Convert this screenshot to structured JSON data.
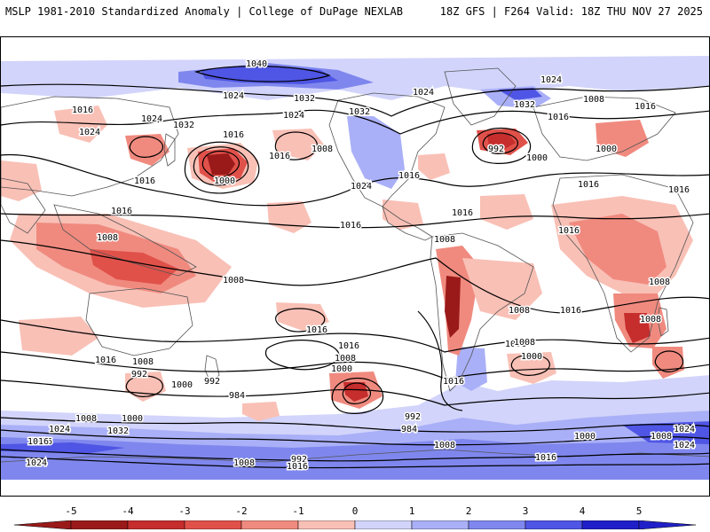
{
  "header": {
    "left_title": "MSLP 1981-2010 Standardized Anomaly | College of DuPage NEXLAB",
    "right_title": "18Z GFS | F264 Valid: 18Z THU NOV 27 2025"
  },
  "colors": {
    "neg5": "#9a1a1a",
    "neg4": "#c62d2d",
    "neg3": "#e0514a",
    "neg2": "#f08a7f",
    "neg1": "#f9c0b6",
    "neutral": "#ffffff",
    "pos1": "#d2d4fb",
    "pos2": "#aab0f7",
    "pos3": "#7f87ee",
    "pos4": "#4f55e4",
    "pos5": "#2020c8",
    "isobar": "#000000",
    "coastline": "#555555"
  },
  "colorbar": {
    "ticks": [
      "-5",
      "-4",
      "-3",
      "-2",
      "-1",
      "0",
      "1",
      "2",
      "3",
      "4",
      "5"
    ]
  },
  "isobar_labels": [
    "1040",
    "1024",
    "1032",
    "1024",
    "1032",
    "1024",
    "1024",
    "1032",
    "1016",
    "1008",
    "1016",
    "1016",
    "1024",
    "1024",
    "1032",
    "1016",
    "1008",
    "1016",
    "1016",
    "992",
    "1000",
    "1008",
    "1016",
    "1000",
    "1000",
    "1016",
    "1008",
    "1016",
    "1016",
    "1024",
    "1016",
    "1016",
    "1008",
    "1008",
    "1016",
    "1008",
    "1016",
    "1008",
    "1008",
    "1016",
    "1008",
    "1016",
    "1008",
    "1008",
    "1000",
    "1016",
    "1008",
    "992",
    "1000",
    "992",
    "1016",
    "1000",
    "1008",
    "1016",
    "984",
    "992",
    "984",
    "1008",
    "1000",
    "1032",
    "1024",
    "1016",
    "1008",
    "1000",
    "992",
    "1016",
    "1024",
    "1008",
    "1016",
    "1024",
    "1024"
  ]
}
